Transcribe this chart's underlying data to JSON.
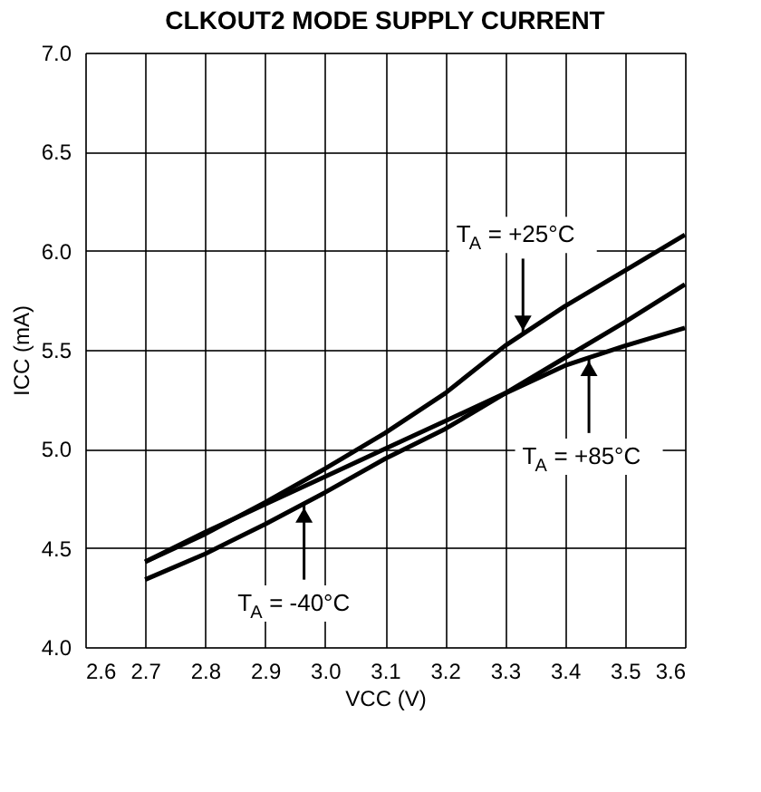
{
  "chart_data": {
    "type": "line",
    "title": "CLKOUT2 MODE SUPPLY CURRENT",
    "xlabel": "VCC (V)",
    "ylabel": "ICC (mA)",
    "xlim": [
      2.6,
      3.6
    ],
    "ylim": [
      4.0,
      7.0
    ],
    "xticks": [
      2.6,
      2.7,
      2.8,
      2.9,
      {
        "value": 3.0,
        "label": "3.0"
      },
      3.1,
      3.2,
      3.3,
      3.4,
      3.5,
      3.6
    ],
    "yticks": [
      {
        "value": 4.0,
        "label": "4.0"
      },
      4.5,
      {
        "value": 5.0,
        "label": "5.0"
      },
      5.5,
      {
        "value": 6.0,
        "label": "6.0"
      },
      6.5,
      {
        "value": 7.0,
        "label": "7.0"
      }
    ],
    "grid": true,
    "marker": "none",
    "line_style": "solid",
    "series": [
      {
        "color": "#000000",
        "x": [
          2.7,
          2.8,
          2.9,
          3.0,
          3.1,
          3.2,
          3.3,
          3.4,
          3.5,
          3.6
        ],
        "values": [
          4.43,
          4.57,
          4.73,
          4.9,
          5.08,
          5.28,
          5.52,
          5.72,
          5.9,
          6.08
        ]
      },
      {
        "color": "#000000",
        "x": [
          2.7,
          2.8,
          2.9,
          3.0,
          3.1,
          3.2,
          3.3,
          3.4,
          3.5,
          3.6
        ],
        "values": [
          4.34,
          4.47,
          4.62,
          4.78,
          4.95,
          5.1,
          5.28,
          5.46,
          5.64,
          5.83
        ]
      },
      {
        "color": "#000000",
        "x": [
          2.7,
          2.8,
          2.9,
          3.0,
          3.1,
          3.2,
          3.3,
          3.4,
          3.5,
          3.6
        ],
        "values": [
          4.43,
          4.58,
          4.72,
          4.86,
          5.0,
          5.14,
          5.28,
          5.42,
          5.52,
          5.61
        ]
      }
    ],
    "annotations": [
      {
        "text": "T$_{A}$ = +25°C",
        "x": 3.33,
        "y": 5.58
      },
      {
        "text": "T$_{A}$ = +85°C",
        "x": 3.44,
        "y": 5.46
      },
      {
        "text": "T$_{A}$ = -40°C",
        "x": 2.965,
        "y": 4.72
      }
    ]
  }
}
